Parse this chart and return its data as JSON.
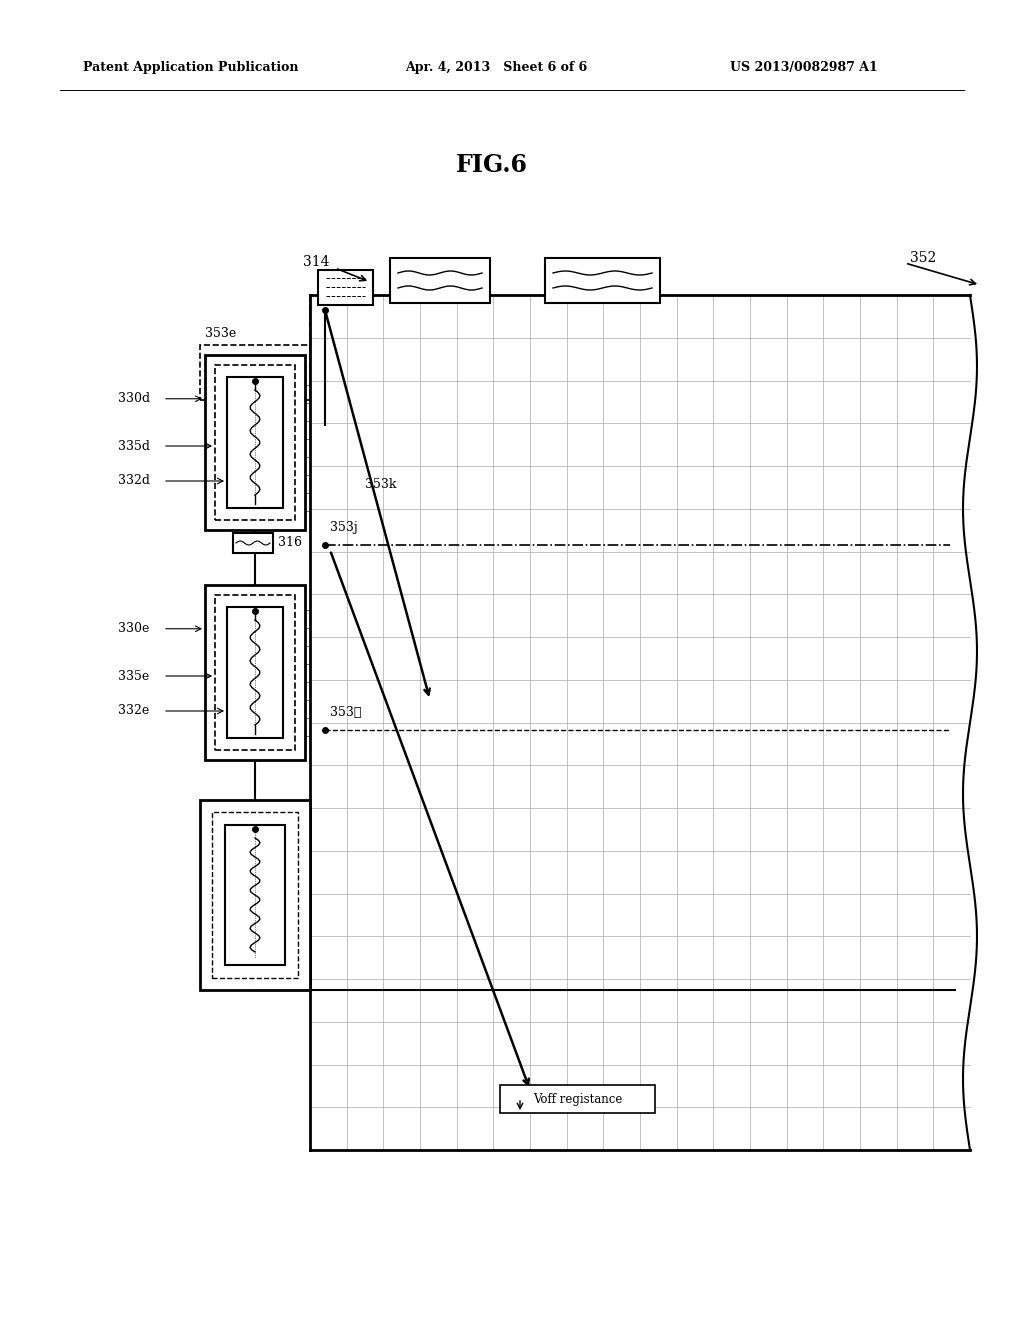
{
  "bg_color": "#ffffff",
  "header_left": "Patent Application Publication",
  "header_mid": "Apr. 4, 2013   Sheet 6 of 6",
  "header_right": "US 2013/0082987 A1",
  "fig_label": "FIG.6",
  "label_352": "352",
  "label_314": "314",
  "label_353e": "353e",
  "label_330d": "330d",
  "label_335d": "335d",
  "label_332d": "332d",
  "label_316": "316",
  "label_330e": "330e",
  "label_335e": "335e",
  "label_332e": "332e",
  "label_353j": "353j",
  "label_353k": "353k",
  "label_353l": "353ℓ",
  "label_voff": "Voff registance"
}
